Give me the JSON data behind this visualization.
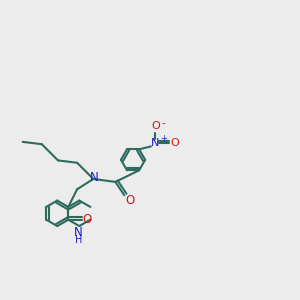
{
  "bg_color": "#ececec",
  "bond_color": "#2d6b5e",
  "N_color": "#1a1acc",
  "O_color": "#cc1a1a",
  "linewidth": 1.5,
  "figsize": [
    3.0,
    3.0
  ],
  "dpi": 100,
  "xlim": [
    0,
    10
  ],
  "ylim": [
    0,
    10
  ]
}
